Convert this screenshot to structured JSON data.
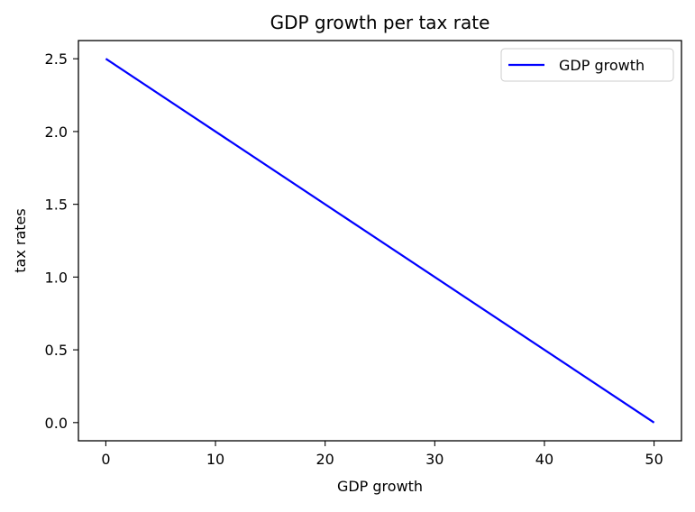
{
  "chart_data": {
    "type": "line",
    "title": "GDP growth per tax rate",
    "xlabel": "GDP growth",
    "ylabel": "tax rates",
    "xlim": [
      -2.5,
      52.5
    ],
    "ylim": [
      -0.125,
      2.625
    ],
    "xticks": [
      0,
      10,
      20,
      30,
      40,
      50
    ],
    "xtick_labels": [
      "0",
      "10",
      "20",
      "30",
      "40",
      "50"
    ],
    "yticks": [
      0.0,
      0.5,
      1.0,
      1.5,
      2.0,
      2.5
    ],
    "ytick_labels": [
      "0.0",
      "0.5",
      "1.0",
      "1.5",
      "2.0",
      "2.5"
    ],
    "grid": false,
    "legend_position": "top-right",
    "series": [
      {
        "name": "GDP growth",
        "color": "#0000ff",
        "x": [
          0,
          50
        ],
        "y": [
          2.5,
          0.0
        ]
      }
    ]
  }
}
